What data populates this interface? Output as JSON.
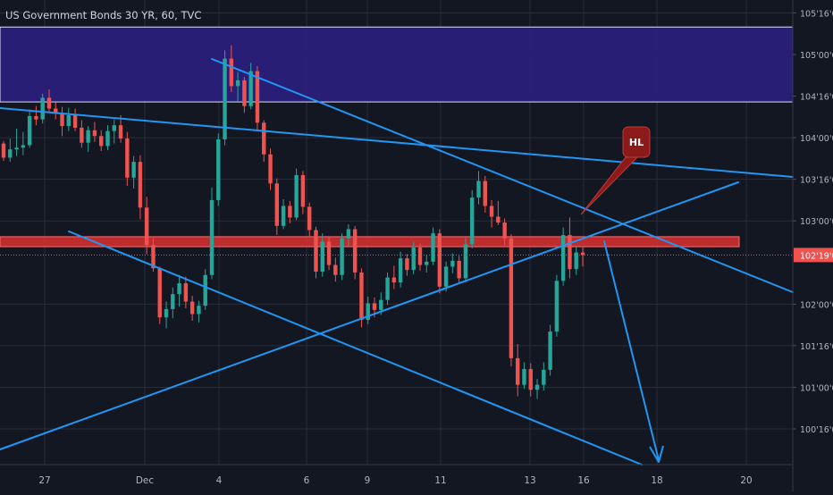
{
  "header": {
    "title": "US Government Bonds 30 YR, 60, TVC"
  },
  "colors": {
    "background": "#131722",
    "grid": "#2a2e39",
    "up": "#26a69a",
    "down": "#ef5350",
    "trendline": "#2196f3",
    "zone_purple": "#2a1f7a",
    "zone_red": "#d32f2f",
    "callout": "#8b1a1a",
    "axis_text": "#b2b5be",
    "price_badge": "#ef5350"
  },
  "chart_data": {
    "type": "candlestick",
    "title": "US Government Bonds 30 YR, 60, TVC",
    "grid": true,
    "y_axis": {
      "ticks": [
        {
          "value": 105.5,
          "label": "105'16'0"
        },
        {
          "value": 105.0,
          "label": "105'00'0"
        },
        {
          "value": 104.5,
          "label": "104'16'0"
        },
        {
          "value": 104.0,
          "label": "104'00'0"
        },
        {
          "value": 103.5,
          "label": "103'16'0"
        },
        {
          "value": 103.0,
          "label": "103'00'0"
        },
        {
          "value": 102.0,
          "label": "102'00'0"
        },
        {
          "value": 101.5,
          "label": "101'16'0"
        },
        {
          "value": 101.0,
          "label": "101'00'0"
        },
        {
          "value": 100.5,
          "label": "100'16'0"
        }
      ],
      "range": [
        99.9,
        105.8
      ]
    },
    "x_axis": {
      "ticks": [
        "27",
        "Dec",
        "4",
        "6",
        "9",
        "11",
        "13",
        "16",
        "18",
        "20"
      ]
    },
    "current_price": {
      "value": 102.59,
      "label": "102'19'0"
    },
    "zones": [
      {
        "name": "purple-resistance-zone",
        "y_top": 105.33,
        "y_bottom": 104.43,
        "color": "#2a1f7a"
      },
      {
        "name": "red-support-zone",
        "y_top": 102.81,
        "y_bottom": 102.69,
        "color": "#d32f2f"
      }
    ],
    "annotations": [
      {
        "text": "HL"
      }
    ],
    "candles": [
      [
        103.93,
        103.96,
        103.72,
        103.76
      ],
      [
        103.76,
        103.99,
        103.71,
        103.86
      ],
      [
        103.86,
        104.11,
        103.78,
        103.88
      ],
      [
        103.88,
        104.07,
        103.79,
        103.91
      ],
      [
        103.91,
        104.34,
        103.88,
        104.26
      ],
      [
        104.26,
        104.38,
        104.15,
        104.22
      ],
      [
        104.22,
        104.53,
        104.17,
        104.48
      ],
      [
        104.48,
        104.58,
        104.3,
        104.35
      ],
      [
        104.35,
        104.42,
        104.22,
        104.3
      ],
      [
        104.3,
        104.37,
        104.02,
        104.14
      ],
      [
        104.14,
        104.36,
        104.08,
        104.27
      ],
      [
        104.27,
        104.35,
        104.08,
        104.12
      ],
      [
        104.12,
        104.21,
        103.88,
        103.94
      ],
      [
        103.94,
        104.14,
        103.83,
        104.09
      ],
      [
        104.09,
        104.19,
        103.95,
        104.02
      ],
      [
        104.02,
        104.09,
        103.84,
        103.9
      ],
      [
        103.9,
        104.15,
        103.85,
        104.08
      ],
      [
        104.08,
        104.22,
        103.93,
        104.15
      ],
      [
        104.15,
        104.27,
        103.94,
        103.99
      ],
      [
        103.99,
        104.07,
        103.42,
        103.52
      ],
      [
        103.52,
        103.78,
        103.39,
        103.71
      ],
      [
        103.71,
        103.79,
        103.02,
        103.16
      ],
      [
        103.16,
        103.29,
        102.6,
        102.71
      ],
      [
        102.71,
        102.79,
        102.39,
        102.43
      ],
      [
        102.43,
        102.45,
        101.76,
        101.84
      ],
      [
        101.84,
        102.03,
        101.71,
        101.94
      ],
      [
        101.94,
        102.2,
        101.83,
        102.12
      ],
      [
        102.12,
        102.35,
        101.97,
        102.25
      ],
      [
        102.25,
        102.33,
        101.95,
        102.03
      ],
      [
        102.03,
        102.1,
        101.8,
        101.88
      ],
      [
        101.88,
        102.04,
        101.78,
        101.98
      ],
      [
        101.98,
        102.42,
        101.93,
        102.35
      ],
      [
        102.35,
        103.4,
        102.3,
        103.25
      ],
      [
        103.25,
        104.05,
        103.18,
        103.98
      ],
      [
        103.98,
        105.05,
        103.91,
        104.95
      ],
      [
        104.95,
        105.11,
        104.55,
        104.62
      ],
      [
        104.62,
        104.79,
        104.43,
        104.69
      ],
      [
        104.69,
        104.73,
        104.3,
        104.38
      ],
      [
        104.38,
        104.9,
        104.34,
        104.8
      ],
      [
        104.8,
        104.86,
        104.08,
        104.18
      ],
      [
        104.18,
        104.21,
        103.71,
        103.8
      ],
      [
        103.8,
        103.87,
        103.37,
        103.45
      ],
      [
        103.45,
        103.51,
        102.83,
        102.94
      ],
      [
        102.94,
        103.26,
        102.9,
        103.18
      ],
      [
        103.18,
        103.24,
        102.97,
        103.04
      ],
      [
        103.04,
        103.63,
        103.01,
        103.55
      ],
      [
        103.55,
        103.6,
        103.08,
        103.17
      ],
      [
        103.17,
        103.22,
        102.81,
        102.89
      ],
      [
        102.89,
        102.93,
        102.31,
        102.39
      ],
      [
        102.39,
        102.85,
        102.33,
        102.75
      ],
      [
        102.75,
        102.81,
        102.41,
        102.47
      ],
      [
        102.47,
        102.56,
        102.27,
        102.35
      ],
      [
        102.35,
        102.85,
        102.29,
        102.79
      ],
      [
        102.79,
        102.96,
        102.7,
        102.9
      ],
      [
        102.9,
        102.94,
        102.3,
        102.38
      ],
      [
        102.38,
        102.43,
        101.72,
        101.81
      ],
      [
        101.81,
        102.09,
        101.76,
        102.01
      ],
      [
        102.01,
        102.08,
        101.84,
        101.93
      ],
      [
        101.93,
        102.14,
        101.87,
        102.05
      ],
      [
        102.05,
        102.38,
        101.99,
        102.32
      ],
      [
        102.32,
        102.46,
        102.18,
        102.26
      ],
      [
        102.26,
        102.63,
        102.2,
        102.55
      ],
      [
        102.55,
        102.6,
        102.34,
        102.41
      ],
      [
        102.41,
        102.75,
        102.36,
        102.68
      ],
      [
        102.68,
        102.73,
        102.4,
        102.47
      ],
      [
        102.47,
        102.59,
        102.38,
        102.51
      ],
      [
        102.51,
        102.92,
        102.47,
        102.85
      ],
      [
        102.85,
        102.9,
        102.13,
        102.21
      ],
      [
        102.21,
        102.51,
        102.15,
        102.45
      ],
      [
        102.45,
        102.61,
        102.37,
        102.52
      ],
      [
        102.52,
        102.58,
        102.24,
        102.31
      ],
      [
        102.31,
        102.79,
        102.26,
        102.72
      ],
      [
        102.72,
        103.37,
        102.67,
        103.28
      ],
      [
        103.28,
        103.6,
        103.2,
        103.48
      ],
      [
        103.48,
        103.54,
        103.1,
        103.18
      ],
      [
        103.18,
        103.25,
        102.92,
        103.05
      ],
      [
        103.05,
        103.24,
        102.95,
        102.98
      ],
      [
        102.98,
        103.03,
        102.71,
        102.79
      ],
      [
        102.79,
        102.84,
        101.25,
        101.35
      ],
      [
        101.35,
        101.52,
        100.89,
        101.03
      ],
      [
        101.03,
        101.3,
        100.98,
        101.22
      ],
      [
        101.22,
        101.29,
        100.89,
        100.97
      ],
      [
        100.97,
        101.1,
        100.86,
        101.03
      ],
      [
        101.03,
        101.3,
        100.96,
        101.21
      ],
      [
        101.21,
        101.75,
        101.14,
        101.67
      ],
      [
        101.67,
        102.35,
        101.61,
        102.28
      ],
      [
        102.28,
        102.92,
        102.22,
        102.83
      ],
      [
        102.83,
        103.04,
        102.31,
        102.42
      ],
      [
        102.42,
        102.69,
        102.35,
        102.62
      ],
      [
        102.62,
        102.68,
        102.45,
        102.59
      ]
    ]
  }
}
